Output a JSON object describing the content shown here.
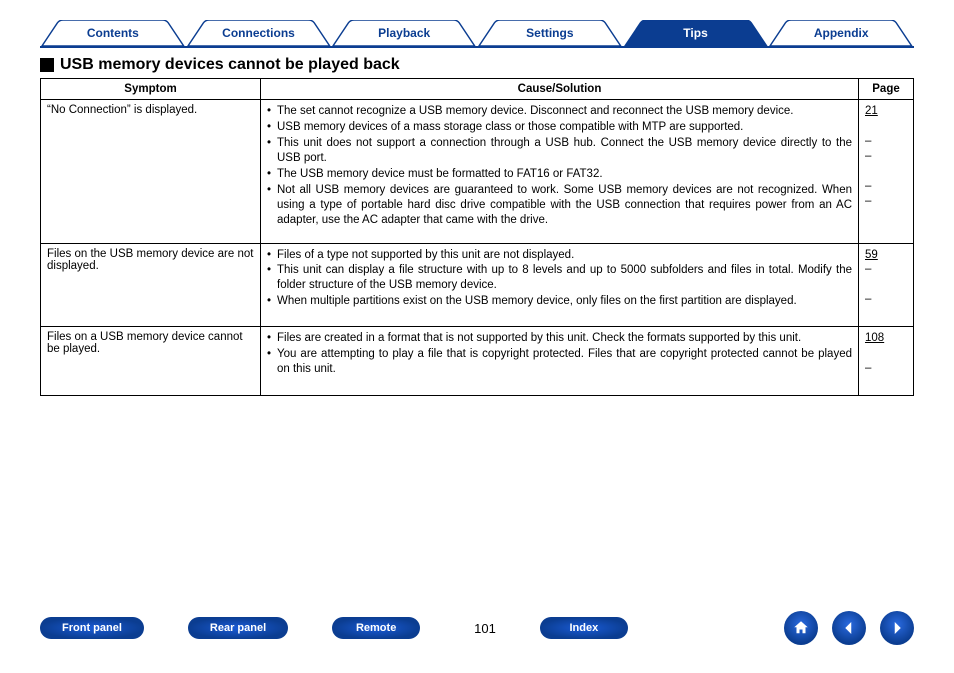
{
  "colors": {
    "brand": "#0b3d91",
    "tab_text": "#0b3d91",
    "tab_active_bg": "#0b3d91",
    "tab_active_text": "#ffffff",
    "border": "#000000",
    "page_bg": "#ffffff"
  },
  "tabs": [
    {
      "label": "Contents",
      "active": false
    },
    {
      "label": "Connections",
      "active": false
    },
    {
      "label": "Playback",
      "active": false
    },
    {
      "label": "Settings",
      "active": false
    },
    {
      "label": "Tips",
      "active": true
    },
    {
      "label": "Appendix",
      "active": false
    }
  ],
  "heading": "USB memory devices cannot be played back",
  "table": {
    "columns": [
      "Symptom",
      "Cause/Solution",
      "Page"
    ],
    "rows": [
      {
        "symptom": "“No Connection” is displayed.",
        "causes": [
          "The set cannot recognize a USB memory device. Disconnect and reconnect the USB memory device.",
          "USB memory devices of a mass storage class or those compatible with MTP are supported.",
          "This unit does not support a connection through a USB hub. Connect the USB memory device directly to the USB port.",
          "The USB memory device must be formatted to FAT16 or FAT32.",
          "Not all USB memory devices are guaranteed to work. Some USB memory devices are not recognized. When using a type of portable hard disc drive compatible with the USB connection that requires power from an AC adapter, use the AC adapter that came with the drive."
        ],
        "pages": [
          "21",
          "–",
          "–",
          "–",
          "–"
        ],
        "page_links": [
          true,
          false,
          false,
          false,
          false
        ]
      },
      {
        "symptom": "Files on the USB memory device are not displayed.",
        "causes": [
          "Files of a type not supported by this unit are not displayed.",
          "This unit can display a file structure with up to 8 levels and up to 5000 subfolders and files in total. Modify the folder structure of the USB memory device.",
          "When multiple partitions exist on the USB memory device, only files on the first partition are displayed."
        ],
        "pages": [
          "59",
          "–",
          "–"
        ],
        "page_links": [
          true,
          false,
          false
        ]
      },
      {
        "symptom": "Files on a USB memory device cannot be played.",
        "causes": [
          "Files are created in a format that is not supported by this unit. Check the formats supported by this unit.",
          "You are attempting to play a file that is copyright protected. Files that are copyright protected cannot be played on this unit."
        ],
        "pages": [
          "108",
          "–"
        ],
        "page_links": [
          true,
          false
        ]
      }
    ]
  },
  "bottom_nav": {
    "buttons": [
      "Front panel",
      "Rear panel",
      "Remote"
    ],
    "page_number": "101",
    "index_label": "Index",
    "icons": [
      "home",
      "back",
      "forward"
    ]
  }
}
